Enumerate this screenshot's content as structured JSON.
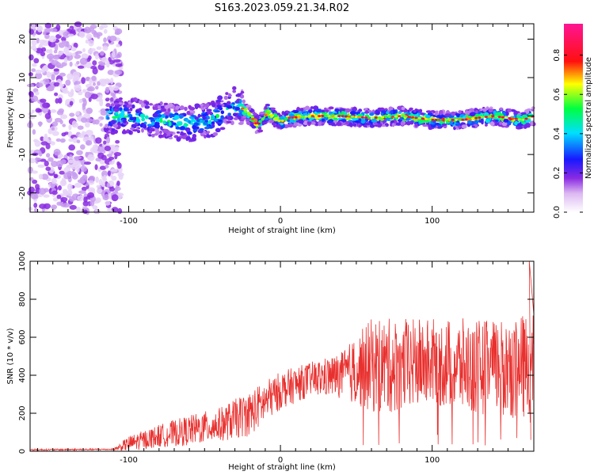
{
  "figure_title": "S163.2023.059.21.34.R02",
  "chart_data": [
    {
      "type": "heatmap",
      "xlabel": "Height of straight line (km)",
      "ylabel": "Frequency (Hz)",
      "xlim": [
        -165,
        167
      ],
      "ylim": [
        -25,
        24
      ],
      "xticks": [
        -100,
        0,
        100
      ],
      "yticks": [
        -20,
        -10,
        0,
        10,
        20
      ],
      "colorbar": {
        "label": "Normalized spectral amplitude",
        "range": [
          0.0,
          0.96
        ],
        "ticks": [
          "0.0",
          "0.2",
          "0.4",
          "0.6",
          "0.8"
        ],
        "colormap": "white-violet-blue-cyan-green-yellow-red-magenta"
      },
      "ridge": {
        "x": [
          -115,
          -100,
          -80,
          -60,
          -45,
          -30,
          -25,
          -20,
          -15,
          -8,
          0,
          5,
          20,
          40,
          60,
          80,
          100,
          120,
          140,
          160,
          167
        ],
        "freq_hz": [
          0,
          0,
          -1,
          -2,
          -1,
          3,
          2,
          0,
          -2.5,
          1,
          -1.5,
          -0.5,
          0,
          0,
          -0.5,
          0,
          -1,
          -1,
          0,
          -1,
          0
        ]
      },
      "noise_region_x": [
        -165,
        -105
      ]
    },
    {
      "type": "line",
      "xlabel": "Height of straight line (km)",
      "ylabel": "SNR (10 * v/v)",
      "xlim": [
        -165,
        167
      ],
      "ylim": [
        0,
        1000
      ],
      "xticks": [
        -100,
        0,
        100
      ],
      "yticks": [
        0,
        200,
        400,
        600,
        800,
        1000
      ],
      "series": [
        {
          "color": "#e8302e",
          "envelope_x": [
            -165,
            -110,
            -100,
            -80,
            -60,
            -40,
            -20,
            0,
            20,
            40,
            60,
            80,
            100,
            120,
            140,
            160,
            167
          ],
          "envelope_mean": [
            8,
            10,
            40,
            80,
            110,
            140,
            200,
            320,
            380,
            400,
            450,
            450,
            470,
            450,
            440,
            440,
            430
          ],
          "envelope_spread": [
            4,
            4,
            40,
            60,
            80,
            90,
            120,
            100,
            90,
            120,
            250,
            250,
            230,
            250,
            250,
            280,
            300
          ]
        }
      ]
    }
  ]
}
